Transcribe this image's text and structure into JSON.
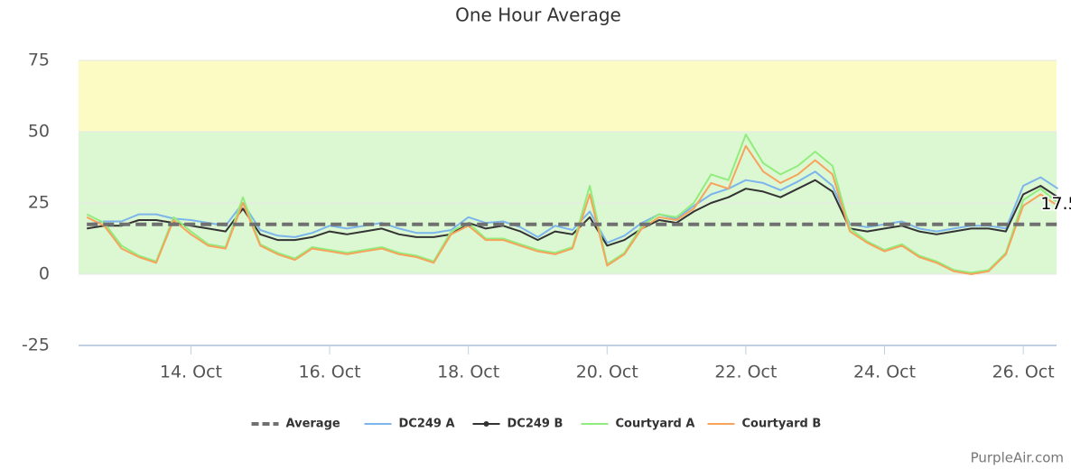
{
  "chart_data": {
    "type": "line",
    "title": "One Hour Average",
    "credit": "PurpleAir.com",
    "xlim": [
      12.38,
      26.48
    ],
    "ylim": [
      -25,
      75
    ],
    "yticks": [
      -25,
      0,
      25,
      50,
      75
    ],
    "xticks": [
      {
        "value": 14,
        "label": "14. Oct"
      },
      {
        "value": 16,
        "label": "16. Oct"
      },
      {
        "value": 18,
        "label": "18. Oct"
      },
      {
        "value": 20,
        "label": "20. Oct"
      },
      {
        "value": 22,
        "label": "22. Oct"
      },
      {
        "value": 24,
        "label": "24. Oct"
      },
      {
        "value": 26,
        "label": "26. Oct"
      }
    ],
    "grid": true,
    "bands": [
      {
        "from": 0,
        "to": 50,
        "color": "#dcf8d2"
      },
      {
        "from": 50,
        "to": 75,
        "color": "#fdfbc4"
      }
    ],
    "x": [
      12.5,
      12.75,
      13,
      13.25,
      13.5,
      13.75,
      14,
      14.25,
      14.5,
      14.75,
      15,
      15.25,
      15.5,
      15.75,
      16,
      16.25,
      16.5,
      16.75,
      17,
      17.25,
      17.5,
      17.75,
      18,
      18.25,
      18.5,
      18.75,
      19,
      19.25,
      19.5,
      19.75,
      20,
      20.25,
      20.5,
      20.75,
      21,
      21.25,
      21.5,
      21.75,
      22,
      22.25,
      22.5,
      22.75,
      23,
      23.25,
      23.5,
      23.75,
      24,
      24.25,
      24.5,
      24.75,
      25,
      25.25,
      25.5,
      25.75,
      26,
      26.25,
      26.5
    ],
    "series": [
      {
        "name": "Average",
        "color": "#707070",
        "dashed": true,
        "values": [
          17.5,
          17.5,
          17.5,
          17.5,
          17.5,
          17.5,
          17.5,
          17.5,
          17.5,
          17.5,
          17.5,
          17.5,
          17.5,
          17.5,
          17.5,
          17.5,
          17.5,
          17.5,
          17.5,
          17.5,
          17.5,
          17.5,
          17.5,
          17.5,
          17.5,
          17.5,
          17.5,
          17.5,
          17.5,
          17.5,
          17.5,
          17.5,
          17.5,
          17.5,
          17.5,
          17.5,
          17.5,
          17.5,
          17.5,
          17.5,
          17.5,
          17.5,
          17.5,
          17.5,
          17.5,
          17.5,
          17.5,
          17.5,
          17.5,
          17.5,
          17.5,
          17.5,
          17.5,
          17.5,
          17.5,
          17.5,
          17.5
        ]
      },
      {
        "name": "DC249 A",
        "color": "#7cb5ec",
        "values": [
          17.5,
          18.5,
          18.5,
          21,
          21,
          19.5,
          19,
          18,
          17,
          25,
          15.5,
          13.5,
          13,
          14.5,
          17,
          16,
          17,
          18,
          16,
          14.5,
          14.5,
          15.5,
          20,
          18,
          18.5,
          16.5,
          13,
          17,
          15.5,
          22,
          11,
          13.5,
          18,
          21,
          19.5,
          24,
          28,
          30,
          33,
          32,
          29.5,
          32.5,
          36,
          31,
          17.5,
          16.5,
          17.5,
          18.5,
          16,
          15,
          16,
          17,
          17,
          16,
          31,
          34,
          30
        ]
      },
      {
        "name": "DC249 B",
        "color": "#333333",
        "marker": true,
        "values": [
          16,
          17,
          17,
          19,
          19,
          18,
          17,
          16,
          15,
          23,
          14,
          12,
          12,
          13,
          15,
          14,
          15,
          16,
          14,
          13,
          13,
          14,
          18,
          16,
          17,
          15,
          12,
          15,
          14,
          20,
          10,
          12,
          16,
          19,
          18,
          22,
          25,
          27,
          30,
          29,
          27,
          30,
          33,
          29,
          16,
          15,
          16,
          17,
          15,
          14,
          15,
          16,
          16,
          15,
          28,
          31,
          27
        ]
      },
      {
        "name": "Courtyard A",
        "color": "#90ed7d",
        "values": [
          21,
          18,
          10,
          6.5,
          4.5,
          20,
          15,
          10.5,
          9.5,
          27,
          10.5,
          7.5,
          5.5,
          9.5,
          8.5,
          7.5,
          8.5,
          9.5,
          7.5,
          6.5,
          4.5,
          15,
          18,
          12.5,
          12.5,
          10.5,
          8.5,
          7.5,
          9.5,
          31,
          3.5,
          7.5,
          17,
          21,
          20,
          25,
          35,
          33,
          49,
          39,
          35,
          38,
          43,
          38,
          16,
          11.5,
          8.5,
          10.5,
          6.5,
          4.5,
          1.5,
          0.5,
          1.5,
          7.5,
          26,
          30,
          25
        ]
      },
      {
        "name": "Courtyard B",
        "color": "#f7a35c",
        "values": [
          20,
          17,
          9,
          6,
          4,
          19,
          14,
          10,
          9,
          25,
          10,
          7,
          5,
          9,
          8,
          7,
          8,
          9,
          7,
          6,
          4,
          14,
          17,
          12,
          12,
          10,
          8,
          7,
          9,
          28,
          3,
          7,
          16,
          20,
          19,
          23,
          32,
          30,
          45,
          36,
          32,
          35,
          40,
          35,
          15,
          11,
          8,
          10,
          6,
          4,
          1,
          0,
          1,
          7,
          24,
          28,
          24
        ]
      }
    ]
  }
}
